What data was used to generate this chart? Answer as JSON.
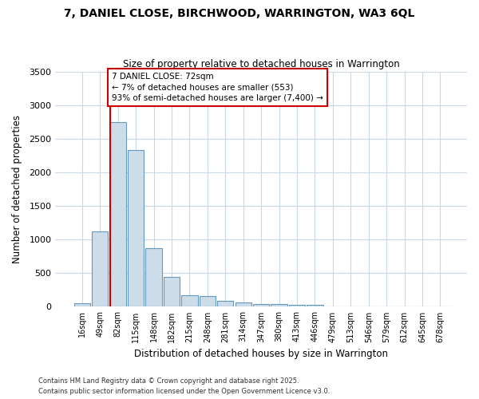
{
  "title": "7, DANIEL CLOSE, BIRCHWOOD, WARRINGTON, WA3 6QL",
  "subtitle": "Size of property relative to detached houses in Warrington",
  "xlabel": "Distribution of detached houses by size in Warrington",
  "ylabel": "Number of detached properties",
  "categories": [
    "16sqm",
    "49sqm",
    "82sqm",
    "115sqm",
    "148sqm",
    "182sqm",
    "215sqm",
    "248sqm",
    "281sqm",
    "314sqm",
    "347sqm",
    "380sqm",
    "413sqm",
    "446sqm",
    "479sqm",
    "513sqm",
    "546sqm",
    "579sqm",
    "612sqm",
    "645sqm",
    "678sqm"
  ],
  "values": [
    50,
    1120,
    2750,
    2330,
    870,
    440,
    170,
    165,
    90,
    65,
    45,
    45,
    30,
    25,
    10,
    5,
    3,
    2,
    1,
    1,
    1
  ],
  "bar_color": "#ccdce8",
  "bar_edge_color": "#6699bb",
  "subject_bar_index": 2,
  "subject_line_color": "#cc0000",
  "annotation_line1": "7 DANIEL CLOSE: 72sqm",
  "annotation_line2": "← 7% of detached houses are smaller (553)",
  "annotation_line3": "93% of semi-detached houses are larger (7,400) →",
  "annotation_box_edge": "#cc0000",
  "footnote1": "Contains HM Land Registry data © Crown copyright and database right 2025.",
  "footnote2": "Contains public sector information licensed under the Open Government Licence v3.0.",
  "plot_bg_color": "#ffffff",
  "fig_bg_color": "#ffffff",
  "grid_color": "#c8d8e8",
  "ylim": [
    0,
    3500
  ],
  "yticks": [
    0,
    500,
    1000,
    1500,
    2000,
    2500,
    3000,
    3500
  ]
}
